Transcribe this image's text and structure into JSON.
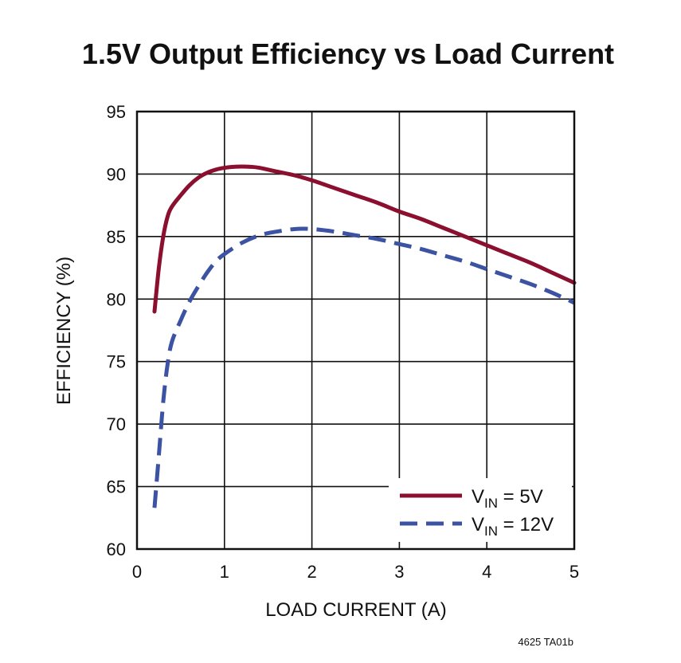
{
  "chart_data": {
    "type": "line",
    "title": "1.5V Output Efficiency vs Load Current",
    "xlabel": "LOAD CURRENT (A)",
    "ylabel": "EFFICIENCY (%)",
    "xlim": [
      0,
      5
    ],
    "ylim": [
      60,
      95
    ],
    "xticks": [
      "0",
      "1",
      "2",
      "3",
      "4",
      "5"
    ],
    "yticks": [
      "60",
      "65",
      "70",
      "75",
      "80",
      "85",
      "90",
      "95"
    ],
    "grid": true,
    "legend_position": "bottom-right",
    "series": [
      {
        "name": "VIN = 5V",
        "legend_main": "V",
        "legend_sub": "IN",
        "legend_rest": " = 5V",
        "color": "#8b0f2e",
        "dash": "solid",
        "x": [
          0.2,
          0.25,
          0.3,
          0.35,
          0.4,
          0.5,
          0.6,
          0.7,
          0.8,
          0.9,
          1.0,
          1.1,
          1.2,
          1.3,
          1.4,
          1.6,
          1.8,
          2.0,
          2.25,
          2.5,
          2.75,
          3.0,
          3.25,
          3.5,
          3.75,
          4.0,
          4.25,
          4.5,
          4.75,
          5.0
        ],
        "y": [
          79.0,
          82.5,
          85.0,
          86.6,
          87.4,
          88.3,
          89.1,
          89.7,
          90.1,
          90.35,
          90.5,
          90.58,
          90.6,
          90.58,
          90.5,
          90.2,
          89.9,
          89.5,
          88.9,
          88.3,
          87.7,
          87.0,
          86.4,
          85.7,
          85.0,
          84.3,
          83.6,
          82.9,
          82.1,
          81.3
        ]
      },
      {
        "name": "VIN = 12V",
        "legend_main": "V",
        "legend_sub": "IN",
        "legend_rest": " = 12V",
        "color": "#3c52a3",
        "dash": "dashed",
        "x": [
          0.2,
          0.25,
          0.3,
          0.35,
          0.4,
          0.5,
          0.6,
          0.7,
          0.8,
          0.9,
          1.0,
          1.2,
          1.4,
          1.6,
          1.8,
          2.0,
          2.25,
          2.5,
          2.75,
          3.0,
          3.25,
          3.5,
          3.75,
          4.0,
          4.25,
          4.5,
          4.75,
          5.0
        ],
        "y": [
          63.3,
          67.5,
          71.8,
          74.8,
          76.6,
          78.3,
          79.8,
          81.0,
          82.1,
          83.0,
          83.6,
          84.5,
          85.1,
          85.4,
          85.6,
          85.6,
          85.4,
          85.1,
          84.8,
          84.4,
          84.0,
          83.5,
          83.0,
          82.4,
          81.8,
          81.2,
          80.5,
          79.7
        ]
      }
    ]
  },
  "footnote": "4625 TA01b"
}
